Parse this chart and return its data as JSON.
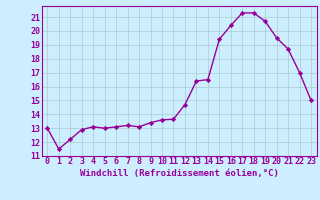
{
  "x": [
    0,
    1,
    2,
    3,
    4,
    5,
    6,
    7,
    8,
    9,
    10,
    11,
    12,
    13,
    14,
    15,
    16,
    17,
    18,
    19,
    20,
    21,
    22,
    23
  ],
  "y": [
    13.0,
    11.5,
    12.2,
    12.9,
    13.1,
    13.0,
    13.1,
    13.2,
    13.1,
    13.4,
    13.6,
    13.65,
    14.7,
    16.4,
    16.5,
    19.4,
    20.4,
    21.3,
    21.3,
    20.7,
    19.5,
    18.7,
    17.0,
    15.0
  ],
  "line_color": "#990099",
  "marker": "D",
  "marker_size": 2.2,
  "bg_color": "#cceeff",
  "grid_color": "#aacccc",
  "xlabel": "Windchill (Refroidissement éolien,°C)",
  "ylabel_ticks": [
    11,
    12,
    13,
    14,
    15,
    16,
    17,
    18,
    19,
    20,
    21
  ],
  "xlim": [
    -0.5,
    23.5
  ],
  "ylim": [
    11.0,
    21.8
  ],
  "xticks": [
    0,
    1,
    2,
    3,
    4,
    5,
    6,
    7,
    8,
    9,
    10,
    11,
    12,
    13,
    14,
    15,
    16,
    17,
    18,
    19,
    20,
    21,
    22,
    23
  ],
  "label_fontsize": 6.5,
  "tick_fontsize": 6.0,
  "line_width": 1.0
}
